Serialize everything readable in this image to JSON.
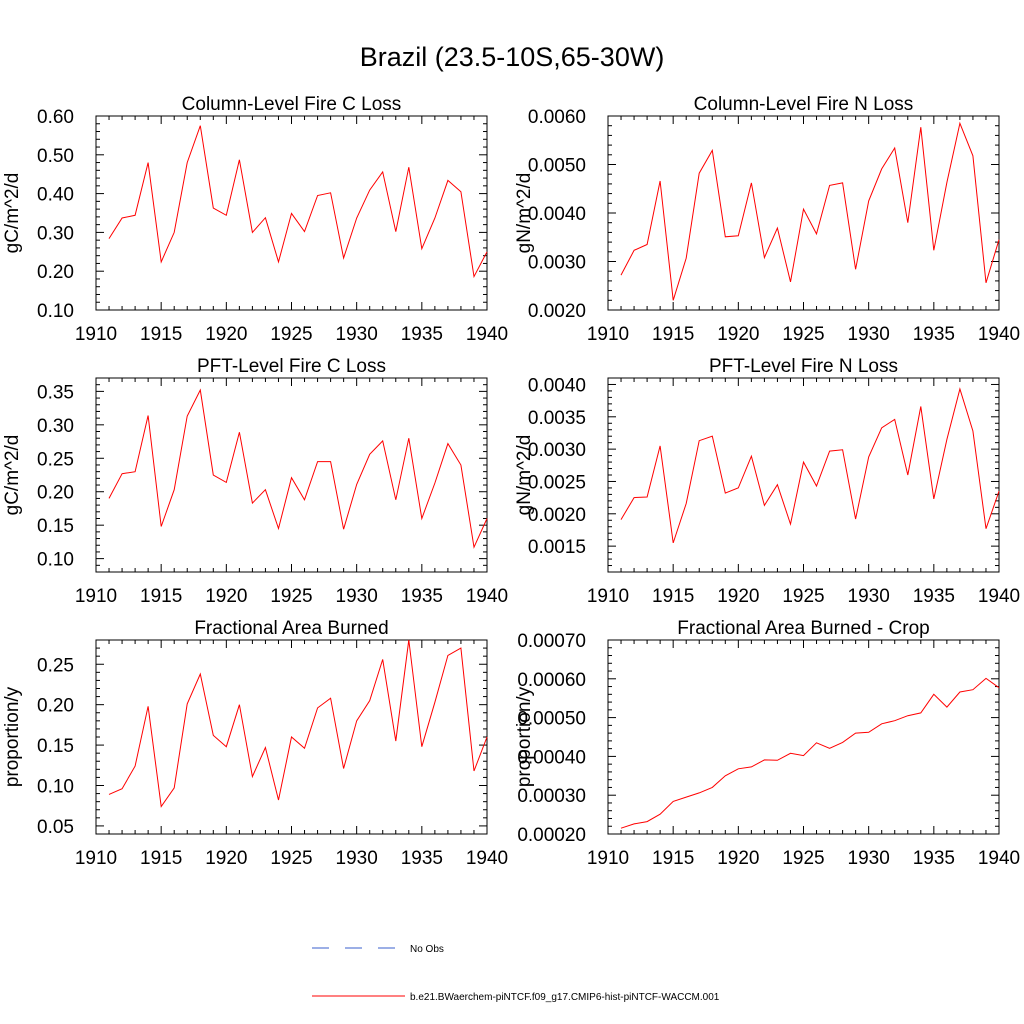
{
  "figure": {
    "title": "Brazil (23.5-10S,65-30W)"
  },
  "chart_data": [
    {
      "id": "col-fire-c",
      "type": "line",
      "title": "Column-Level Fire C Loss",
      "ylabel": "gC/m^2/d",
      "xlim": [
        1910,
        1940
      ],
      "ylim": [
        0.1,
        0.6
      ],
      "xticks": [
        "1910",
        "1915",
        "1920",
        "1925",
        "1930",
        "1935",
        "1940"
      ],
      "yticks": [
        "0.10",
        "0.20",
        "0.30",
        "0.40",
        "0.50",
        "0.60"
      ],
      "x": [
        1911,
        1912,
        1913,
        1914,
        1915,
        1916,
        1917,
        1918,
        1919,
        1920,
        1921,
        1922,
        1923,
        1924,
        1925,
        1926,
        1927,
        1928,
        1929,
        1930,
        1931,
        1932,
        1933,
        1934,
        1935,
        1936,
        1937,
        1938,
        1939,
        1940
      ],
      "series": [
        {
          "name": "b.e21.BWaerchem-piNTCF.f09_g17.CMIP6-hist-piNTCF-WACCM.001",
          "color": "#ff0000",
          "values": [
            0.284,
            0.337,
            0.344,
            0.48,
            0.224,
            0.3,
            0.48,
            0.575,
            0.363,
            0.344,
            0.487,
            0.3,
            0.338,
            0.224,
            0.349,
            0.302,
            0.395,
            0.402,
            0.234,
            0.337,
            0.409,
            0.456,
            0.302,
            0.468,
            0.258,
            0.337,
            0.434,
            0.405,
            0.186,
            0.25
          ]
        }
      ]
    },
    {
      "id": "col-fire-n",
      "type": "line",
      "title": "Column-Level Fire N Loss",
      "ylabel": "gN/m^2/d",
      "xlim": [
        1910,
        1940
      ],
      "ylim": [
        0.002,
        0.006
      ],
      "xticks": [
        "1910",
        "1915",
        "1920",
        "1925",
        "1930",
        "1935",
        "1940"
      ],
      "yticks": [
        "0.0020",
        "0.0030",
        "0.0040",
        "0.0050",
        "0.0060"
      ],
      "x": [
        1911,
        1912,
        1913,
        1914,
        1915,
        1916,
        1917,
        1918,
        1919,
        1920,
        1921,
        1922,
        1923,
        1924,
        1925,
        1926,
        1927,
        1928,
        1929,
        1930,
        1931,
        1932,
        1933,
        1934,
        1935,
        1936,
        1937,
        1938,
        1939,
        1940
      ],
      "series": [
        {
          "name": "b.e21.BWaerchem-piNTCF.f09_g17.CMIP6-hist-piNTCF-WACCM.001",
          "color": "#ff0000",
          "values": [
            0.00272,
            0.00323,
            0.00335,
            0.00466,
            0.0022,
            0.00307,
            0.00482,
            0.00529,
            0.00351,
            0.00353,
            0.00462,
            0.00308,
            0.00369,
            0.00258,
            0.00408,
            0.00357,
            0.00457,
            0.00462,
            0.00284,
            0.00425,
            0.00491,
            0.00534,
            0.0038,
            0.00577,
            0.00323,
            0.00463,
            0.00585,
            0.00518,
            0.00256,
            0.00345
          ]
        }
      ]
    },
    {
      "id": "pft-fire-c",
      "type": "line",
      "title": "PFT-Level Fire C Loss",
      "ylabel": "gC/m^2/d",
      "xlim": [
        1910,
        1940
      ],
      "ylim": [
        0.08,
        0.37
      ],
      "xticks": [
        "1910",
        "1915",
        "1920",
        "1925",
        "1930",
        "1935",
        "1940"
      ],
      "yticks": [
        "0.10",
        "0.15",
        "0.20",
        "0.25",
        "0.30",
        "0.35"
      ],
      "x": [
        1911,
        1912,
        1913,
        1914,
        1915,
        1916,
        1917,
        1918,
        1919,
        1920,
        1921,
        1922,
        1923,
        1924,
        1925,
        1926,
        1927,
        1928,
        1929,
        1930,
        1931,
        1932,
        1933,
        1934,
        1935,
        1936,
        1937,
        1938,
        1939,
        1940
      ],
      "series": [
        {
          "name": "b.e21.BWaerchem-piNTCF.f09_g17.CMIP6-hist-piNTCF-WACCM.001",
          "color": "#ff0000",
          "values": [
            0.19,
            0.227,
            0.23,
            0.314,
            0.148,
            0.203,
            0.313,
            0.352,
            0.225,
            0.214,
            0.289,
            0.183,
            0.203,
            0.145,
            0.221,
            0.188,
            0.245,
            0.245,
            0.144,
            0.211,
            0.256,
            0.276,
            0.188,
            0.28,
            0.16,
            0.213,
            0.272,
            0.24,
            0.117,
            0.16
          ]
        }
      ]
    },
    {
      "id": "pft-fire-n",
      "type": "line",
      "title": "PFT-Level Fire N Loss",
      "ylabel": "gN/m^2/d",
      "xlim": [
        1910,
        1940
      ],
      "ylim": [
        0.0011,
        0.0041
      ],
      "xticks": [
        "1910",
        "1915",
        "1920",
        "1925",
        "1930",
        "1935",
        "1940"
      ],
      "yticks": [
        "0.0015",
        "0.0020",
        "0.0025",
        "0.0030",
        "0.0035",
        "0.0040"
      ],
      "x": [
        1911,
        1912,
        1913,
        1914,
        1915,
        1916,
        1917,
        1918,
        1919,
        1920,
        1921,
        1922,
        1923,
        1924,
        1925,
        1926,
        1927,
        1928,
        1929,
        1930,
        1931,
        1932,
        1933,
        1934,
        1935,
        1936,
        1937,
        1938,
        1939,
        1940
      ],
      "series": [
        {
          "name": "b.e21.BWaerchem-piNTCF.f09_g17.CMIP6-hist-piNTCF-WACCM.001",
          "color": "#ff0000",
          "values": [
            0.00191,
            0.00225,
            0.00226,
            0.00305,
            0.00155,
            0.00216,
            0.00313,
            0.0032,
            0.00232,
            0.0024,
            0.00289,
            0.00213,
            0.00245,
            0.00184,
            0.0028,
            0.00243,
            0.00297,
            0.00299,
            0.00192,
            0.00288,
            0.00333,
            0.00346,
            0.0026,
            0.00366,
            0.00223,
            0.00315,
            0.00393,
            0.00328,
            0.00177,
            0.00235
          ]
        }
      ]
    },
    {
      "id": "frac-area-burned",
      "type": "line",
      "title": "Fractional Area Burned",
      "ylabel": "proportion/y",
      "xlim": [
        1910,
        1940
      ],
      "ylim": [
        0.04,
        0.28
      ],
      "xticks": [
        "1910",
        "1915",
        "1920",
        "1925",
        "1930",
        "1935",
        "1940"
      ],
      "yticks": [
        "0.05",
        "0.10",
        "0.15",
        "0.20",
        "0.25"
      ],
      "x": [
        1911,
        1912,
        1913,
        1914,
        1915,
        1916,
        1917,
        1918,
        1919,
        1920,
        1921,
        1922,
        1923,
        1924,
        1925,
        1926,
        1927,
        1928,
        1929,
        1930,
        1931,
        1932,
        1933,
        1934,
        1935,
        1936,
        1937,
        1938,
        1939,
        1940
      ],
      "series": [
        {
          "name": "b.e21.BWaerchem-piNTCF.f09_g17.CMIP6-hist-piNTCF-WACCM.001",
          "color": "#ff0000",
          "values": [
            0.089,
            0.096,
            0.124,
            0.198,
            0.074,
            0.097,
            0.201,
            0.238,
            0.162,
            0.148,
            0.2,
            0.111,
            0.147,
            0.082,
            0.16,
            0.146,
            0.196,
            0.208,
            0.121,
            0.18,
            0.205,
            0.256,
            0.155,
            0.28,
            0.148,
            0.203,
            0.261,
            0.27,
            0.118,
            0.16
          ]
        }
      ]
    },
    {
      "id": "frac-area-burned-crop",
      "type": "line",
      "title": "Fractional Area Burned - Crop",
      "ylabel": "proportion/y",
      "xlim": [
        1910,
        1940
      ],
      "ylim": [
        0.0002,
        0.0007
      ],
      "xticks": [
        "1910",
        "1915",
        "1920",
        "1925",
        "1930",
        "1935",
        "1940"
      ],
      "yticks": [
        "0.00020",
        "0.00030",
        "0.00040",
        "0.00050",
        "0.00060",
        "0.00070"
      ],
      "x": [
        1911,
        1912,
        1913,
        1914,
        1915,
        1916,
        1917,
        1918,
        1919,
        1920,
        1921,
        1922,
        1923,
        1924,
        1925,
        1926,
        1927,
        1928,
        1929,
        1930,
        1931,
        1932,
        1933,
        1934,
        1935,
        1936,
        1937,
        1938,
        1939,
        1940
      ],
      "series": [
        {
          "name": "b.e21.BWaerchem-piNTCF.f09_g17.CMIP6-hist-piNTCF-WACCM.001",
          "color": "#ff0000",
          "values": [
            0.000215,
            0.000226,
            0.000232,
            0.000251,
            0.000284,
            0.000295,
            0.000306,
            0.00032,
            0.00035,
            0.000368,
            0.000373,
            0.000391,
            0.00039,
            0.000408,
            0.000402,
            0.000435,
            0.000421,
            0.000436,
            0.00046,
            0.000462,
            0.000484,
            0.000492,
            0.000505,
            0.000512,
            0.00056,
            0.000527,
            0.000566,
            0.000572,
            0.000601,
            0.000577
          ]
        }
      ]
    }
  ],
  "legend": {
    "items": [
      {
        "label": "No Obs",
        "color": "#3a5fcd",
        "dash": "dashed"
      },
      {
        "label": "b.e21.BWaerchem-piNTCF.f09_g17.CMIP6-hist-piNTCF-WACCM.001",
        "color": "#ff0000",
        "dash": "solid"
      }
    ]
  }
}
